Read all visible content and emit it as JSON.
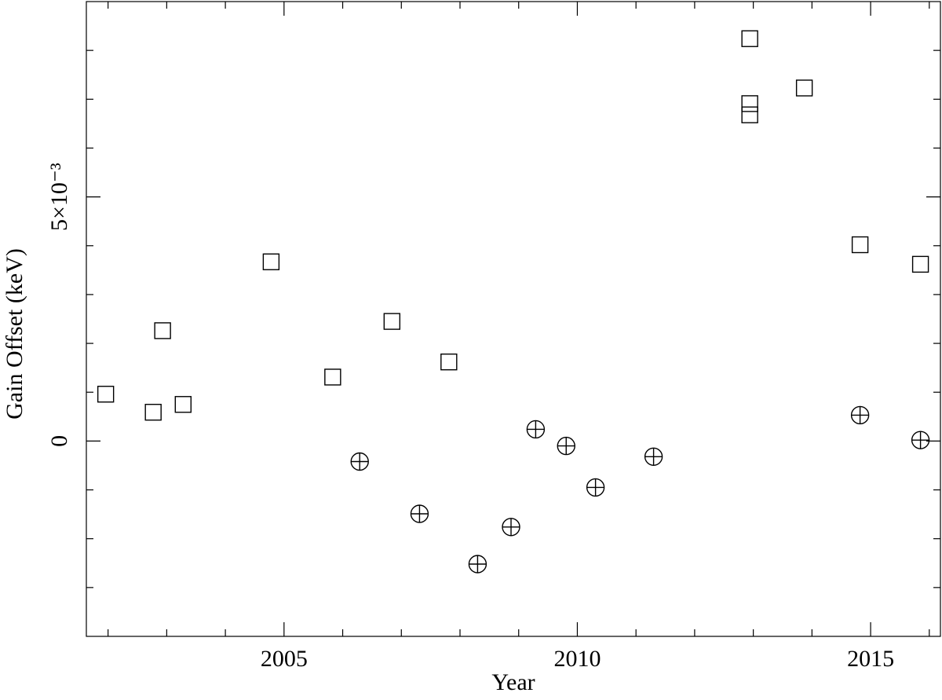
{
  "chart_data": {
    "type": "scatter",
    "xlabel": "Year",
    "ylabel": "Gain Offset (keV)",
    "xlim": [
      2001.63,
      2016.19
    ],
    "ylim": [
      -0.004,
      0.009
    ],
    "xticks": [
      2005,
      2010,
      2015
    ],
    "xminorticks": [
      2002,
      2003,
      2004,
      2006,
      2007,
      2008,
      2009,
      2011,
      2012,
      2013,
      2014,
      2016
    ],
    "yticks": [
      0,
      {
        "value": 0.005,
        "label": "5×10⁻³"
      }
    ],
    "yminorticks": [
      -0.003,
      -0.002,
      -0.001,
      0.001,
      0.002,
      0.003,
      0.004,
      0.006,
      0.007,
      0.008
    ],
    "series": [
      {
        "marker": "square",
        "color": "#000000",
        "x": [
          2001.96,
          2002.77,
          2002.93,
          2003.28,
          2004.78,
          2005.83,
          2006.84,
          2007.81,
          2012.94,
          2012.94,
          2012.94,
          2013.87,
          2014.82,
          2015.85
        ],
        "values": [
          0.00096,
          0.00059,
          0.00226,
          0.00075,
          0.00367,
          0.00131,
          0.00245,
          0.00162,
          0.00824,
          0.00691,
          0.00668,
          0.00723,
          0.00402,
          0.00362
        ]
      },
      {
        "marker": "circle-plus",
        "color": "#000000",
        "x": [
          2006.29,
          2007.31,
          2008.3,
          2008.87,
          2009.29,
          2009.81,
          2010.31,
          2011.3,
          2014.82,
          2015.85
        ],
        "values": [
          -0.00042,
          -0.00149,
          -0.00252,
          -0.00176,
          0.00024,
          -0.0001,
          -0.00095,
          -0.00032,
          0.00053,
          2e-05
        ]
      }
    ]
  }
}
